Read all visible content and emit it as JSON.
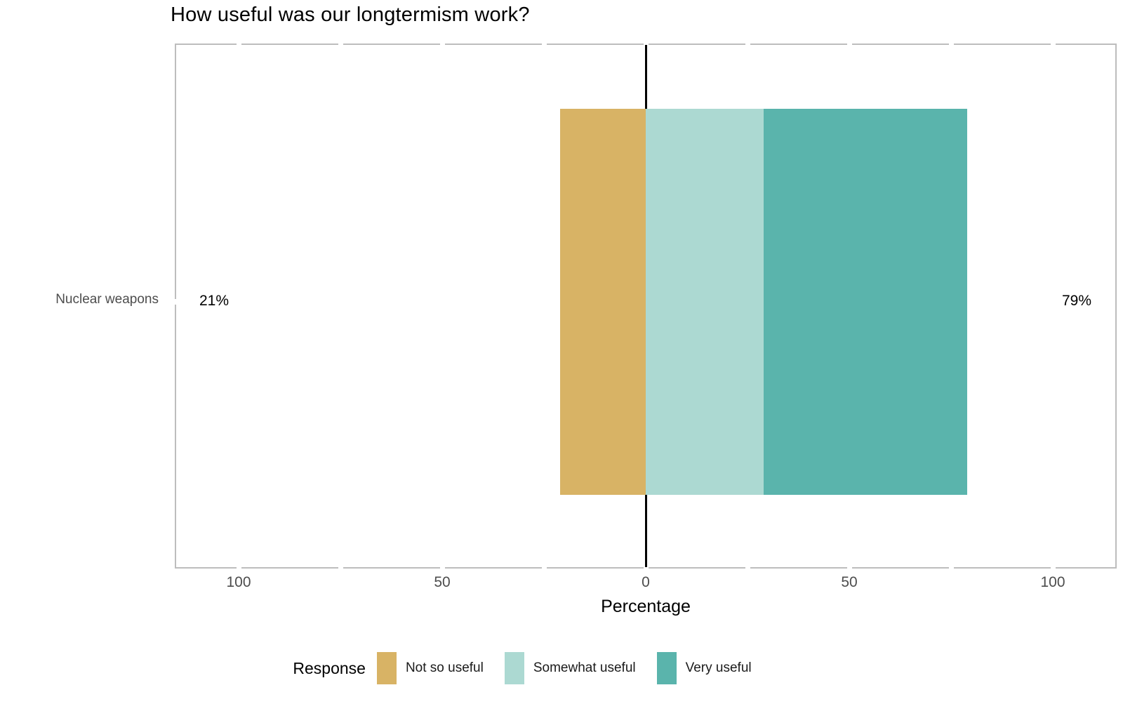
{
  "title": "How useful was our longtermism work?",
  "chart_data": {
    "type": "bar",
    "subtype": "diverging-stacked-likert",
    "title": "How useful was our longtermism work?",
    "categories": [
      "Nuclear weapons"
    ],
    "series": [
      {
        "name": "Not so useful",
        "values": [
          21
        ],
        "color": "#D8B365",
        "side": "left"
      },
      {
        "name": "Somewhat useful",
        "values": [
          29
        ],
        "color": "#ACD9D2",
        "side": "right"
      },
      {
        "name": "Very useful",
        "values": [
          50
        ],
        "color": "#5AB4AC",
        "side": "right"
      }
    ],
    "totals": {
      "left": "21%",
      "right": "79%"
    },
    "xlabel": "Percentage",
    "x_major_ticks": [
      -100,
      -50,
      0,
      50,
      100
    ],
    "x_major_tick_labels": [
      "100",
      "50",
      "0",
      "50",
      "100"
    ],
    "x_minor_ticks": [
      -75,
      -25,
      25,
      75
    ],
    "xlim": [
      -115.5,
      115.5
    ],
    "zero_line": true,
    "grid": false,
    "legend": {
      "title": "Response",
      "position": "bottom"
    },
    "colors": {
      "panel_border": "#BDBDBD",
      "axis_text": "#4D4D4D",
      "zero_line": "#000000",
      "not_so_useful": "#D8B365",
      "somewhat_useful": "#ACD9D2",
      "very_useful": "#5AB4AC"
    }
  }
}
